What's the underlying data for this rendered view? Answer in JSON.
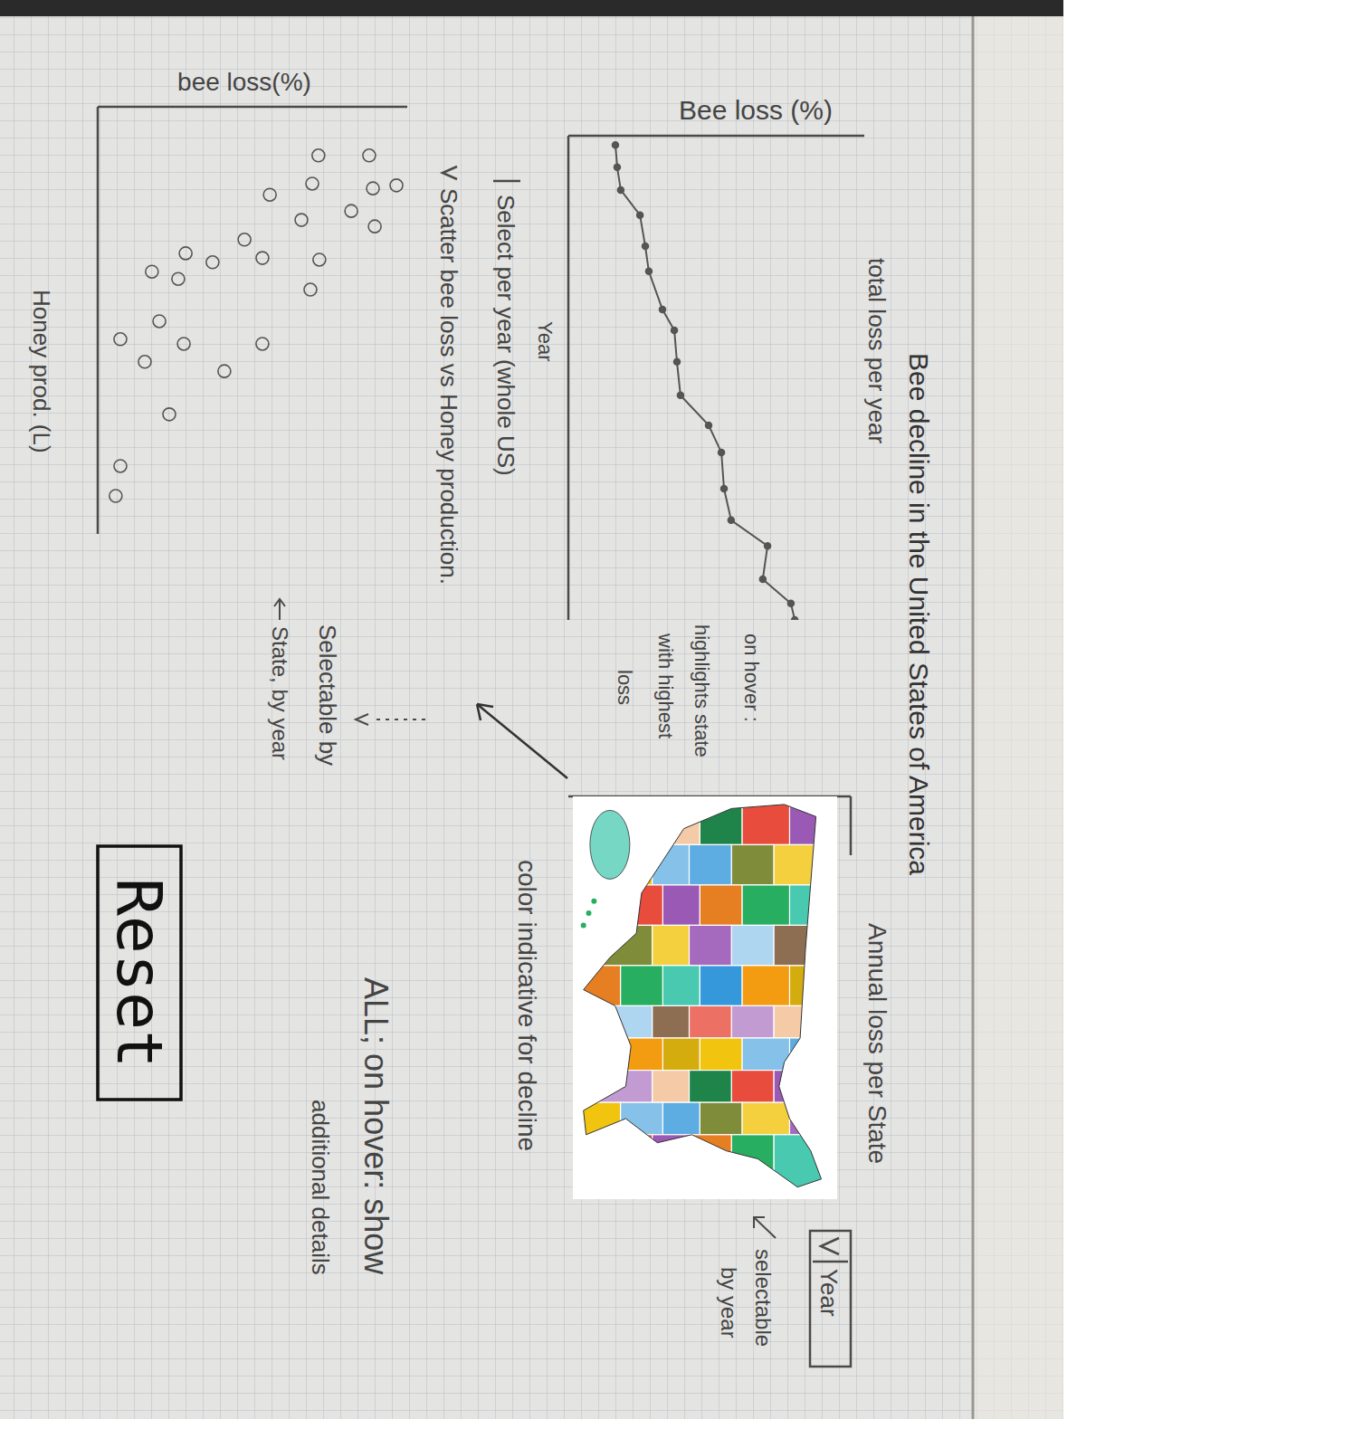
{
  "header": {
    "title": "Bee decline in the United States of America"
  },
  "chart_data": [
    {
      "type": "line",
      "title": "total loss per year",
      "y_label": "Bee loss (%)",
      "x_label": "Year",
      "x": [
        1.9,
        6.5,
        11.2,
        16.4,
        22.8,
        28.0,
        35.9,
        40.2,
        46.7,
        53.6,
        59.8,
        65.4,
        72.9,
        79.4,
        84.7,
        91.6,
        96.6,
        100
      ],
      "values": [
        15.9,
        16.5,
        17.7,
        24.2,
        26.0,
        27.2,
        31.8,
        35.8,
        36.7,
        37.9,
        47.4,
        51.7,
        52.6,
        55.0,
        67.3,
        65.7,
        75.2,
        76.5
      ],
      "xlim": [
        0,
        100
      ],
      "ylim": [
        0,
        100
      ],
      "xticks": [],
      "yticks": [],
      "tick_labels": false,
      "marker": "dot",
      "color": "#555555",
      "annotations": [
        "on hover :",
        "highlights state",
        "with highest",
        "loss"
      ]
    },
    {
      "type": "scatter",
      "title": "Scatter bee loss vs Honey production.",
      "y_label": "bee loss(%)",
      "x_label": "Honey prod. (L)",
      "x": [
        11.4,
        18.4,
        19.1,
        11.4,
        18.0,
        20.6,
        24.4,
        26.5,
        28.0,
        31.1,
        35.4,
        34.3,
        36.4,
        35.8,
        38.6,
        40.3,
        42.8,
        50.2,
        55.5,
        54.4,
        55.5,
        59.7,
        61.9,
        72.0,
        84.1,
        91.1
      ],
      "values": [
        87.7,
        96.5,
        88.9,
        71.3,
        69.3,
        55.6,
        81.9,
        65.8,
        89.5,
        47.4,
        53.2,
        28.4,
        37.1,
        71.6,
        17.5,
        26.0,
        68.7,
        19.9,
        27.8,
        7.3,
        53.2,
        15.2,
        40.9,
        23.1,
        7.3,
        5.8
      ],
      "xlim": [
        0,
        100
      ],
      "ylim": [
        0,
        100
      ],
      "xticks": [],
      "yticks": [],
      "tick_labels": false,
      "marker": "open-circle",
      "color": "#555555",
      "annotations": [
        "Selectable by",
        "State, by year"
      ]
    }
  ],
  "map": {
    "title": "Annual loss per State",
    "dropdown": "Year",
    "dropdown_note": [
      "selectable",
      "by year"
    ],
    "note": "color indicative for decline",
    "hover_note": [
      "ALL; on hover: show",
      "additional details"
    ]
  },
  "controls": {
    "year_select": "Select per year (whole US)",
    "reset": "Reset"
  }
}
